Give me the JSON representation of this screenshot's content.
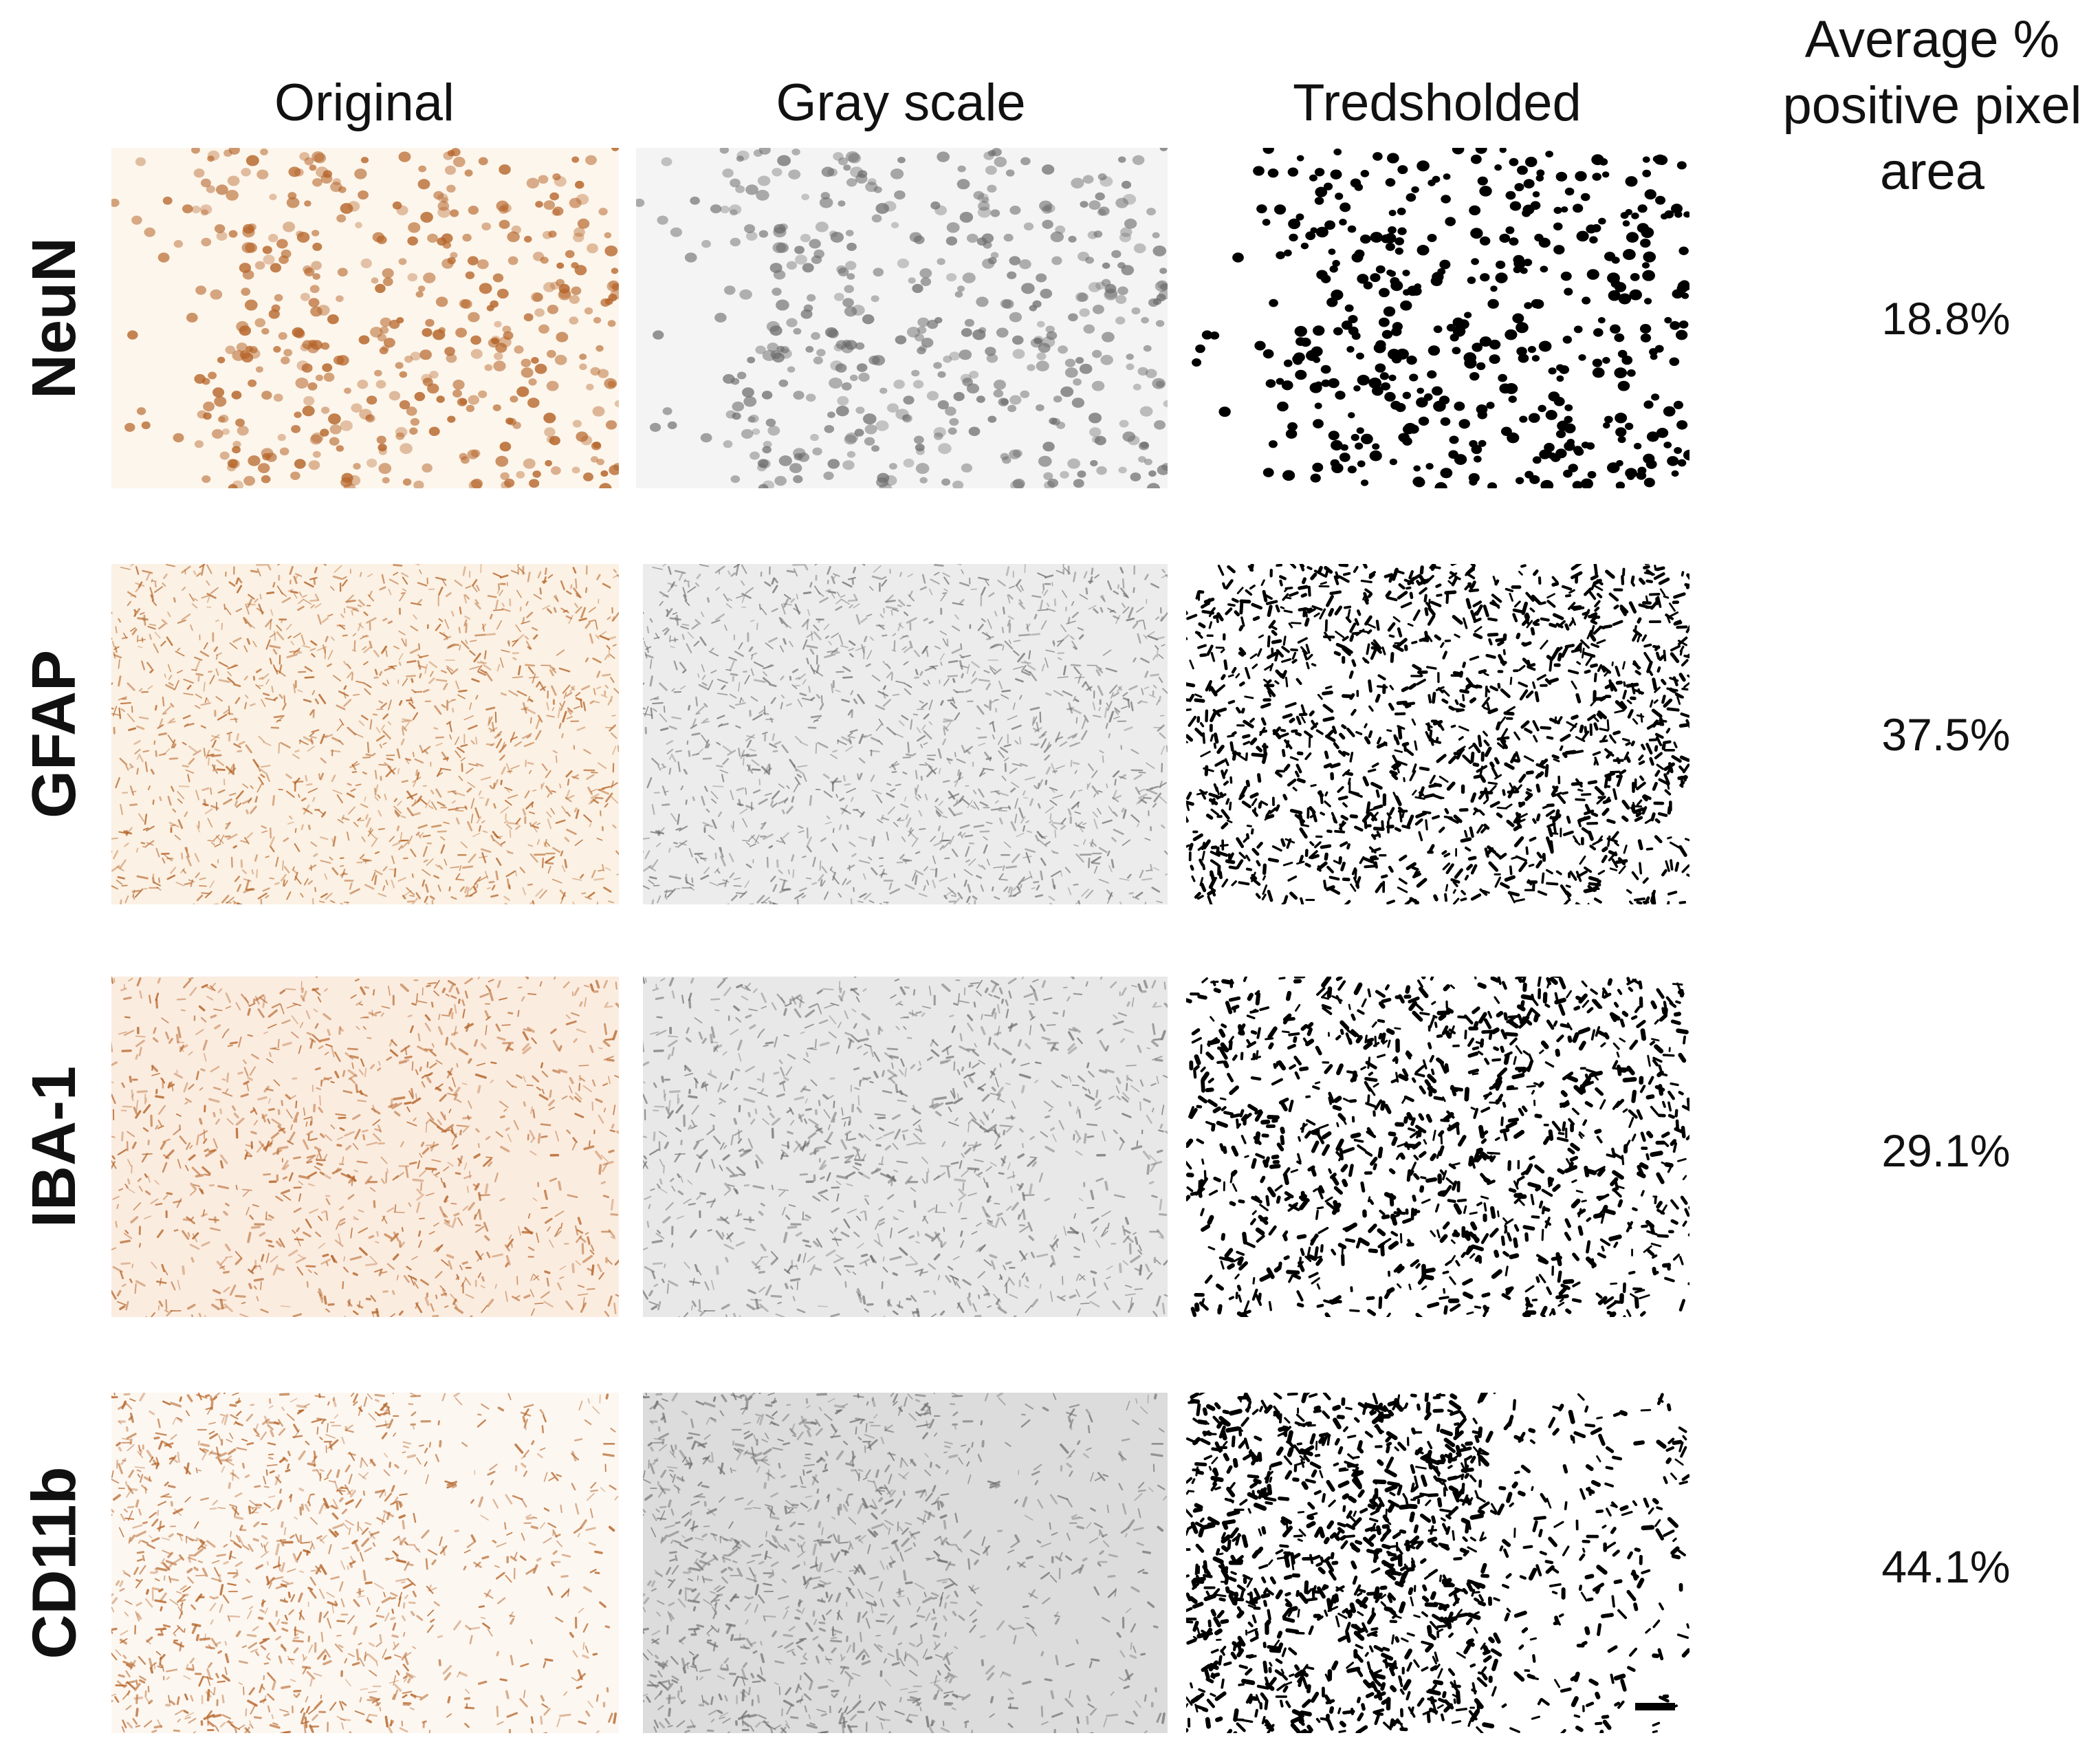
{
  "columns": [
    "Original",
    "Gray scale",
    "Tredsholded"
  ],
  "metric_header": [
    "Average %",
    "positive pixel",
    "area"
  ],
  "rows": [
    {
      "label": "NeuN",
      "value": "18.8%"
    },
    {
      "label": "GFAP",
      "value": "37.5%"
    },
    {
      "label": "IBA-1",
      "value": "29.1%"
    },
    {
      "label": "CD11b",
      "value": "44.1%"
    }
  ],
  "colors": {
    "stain_brown": "#b5652a",
    "gray_stain": "#6b6b6b",
    "threshold_black": "#000000"
  }
}
